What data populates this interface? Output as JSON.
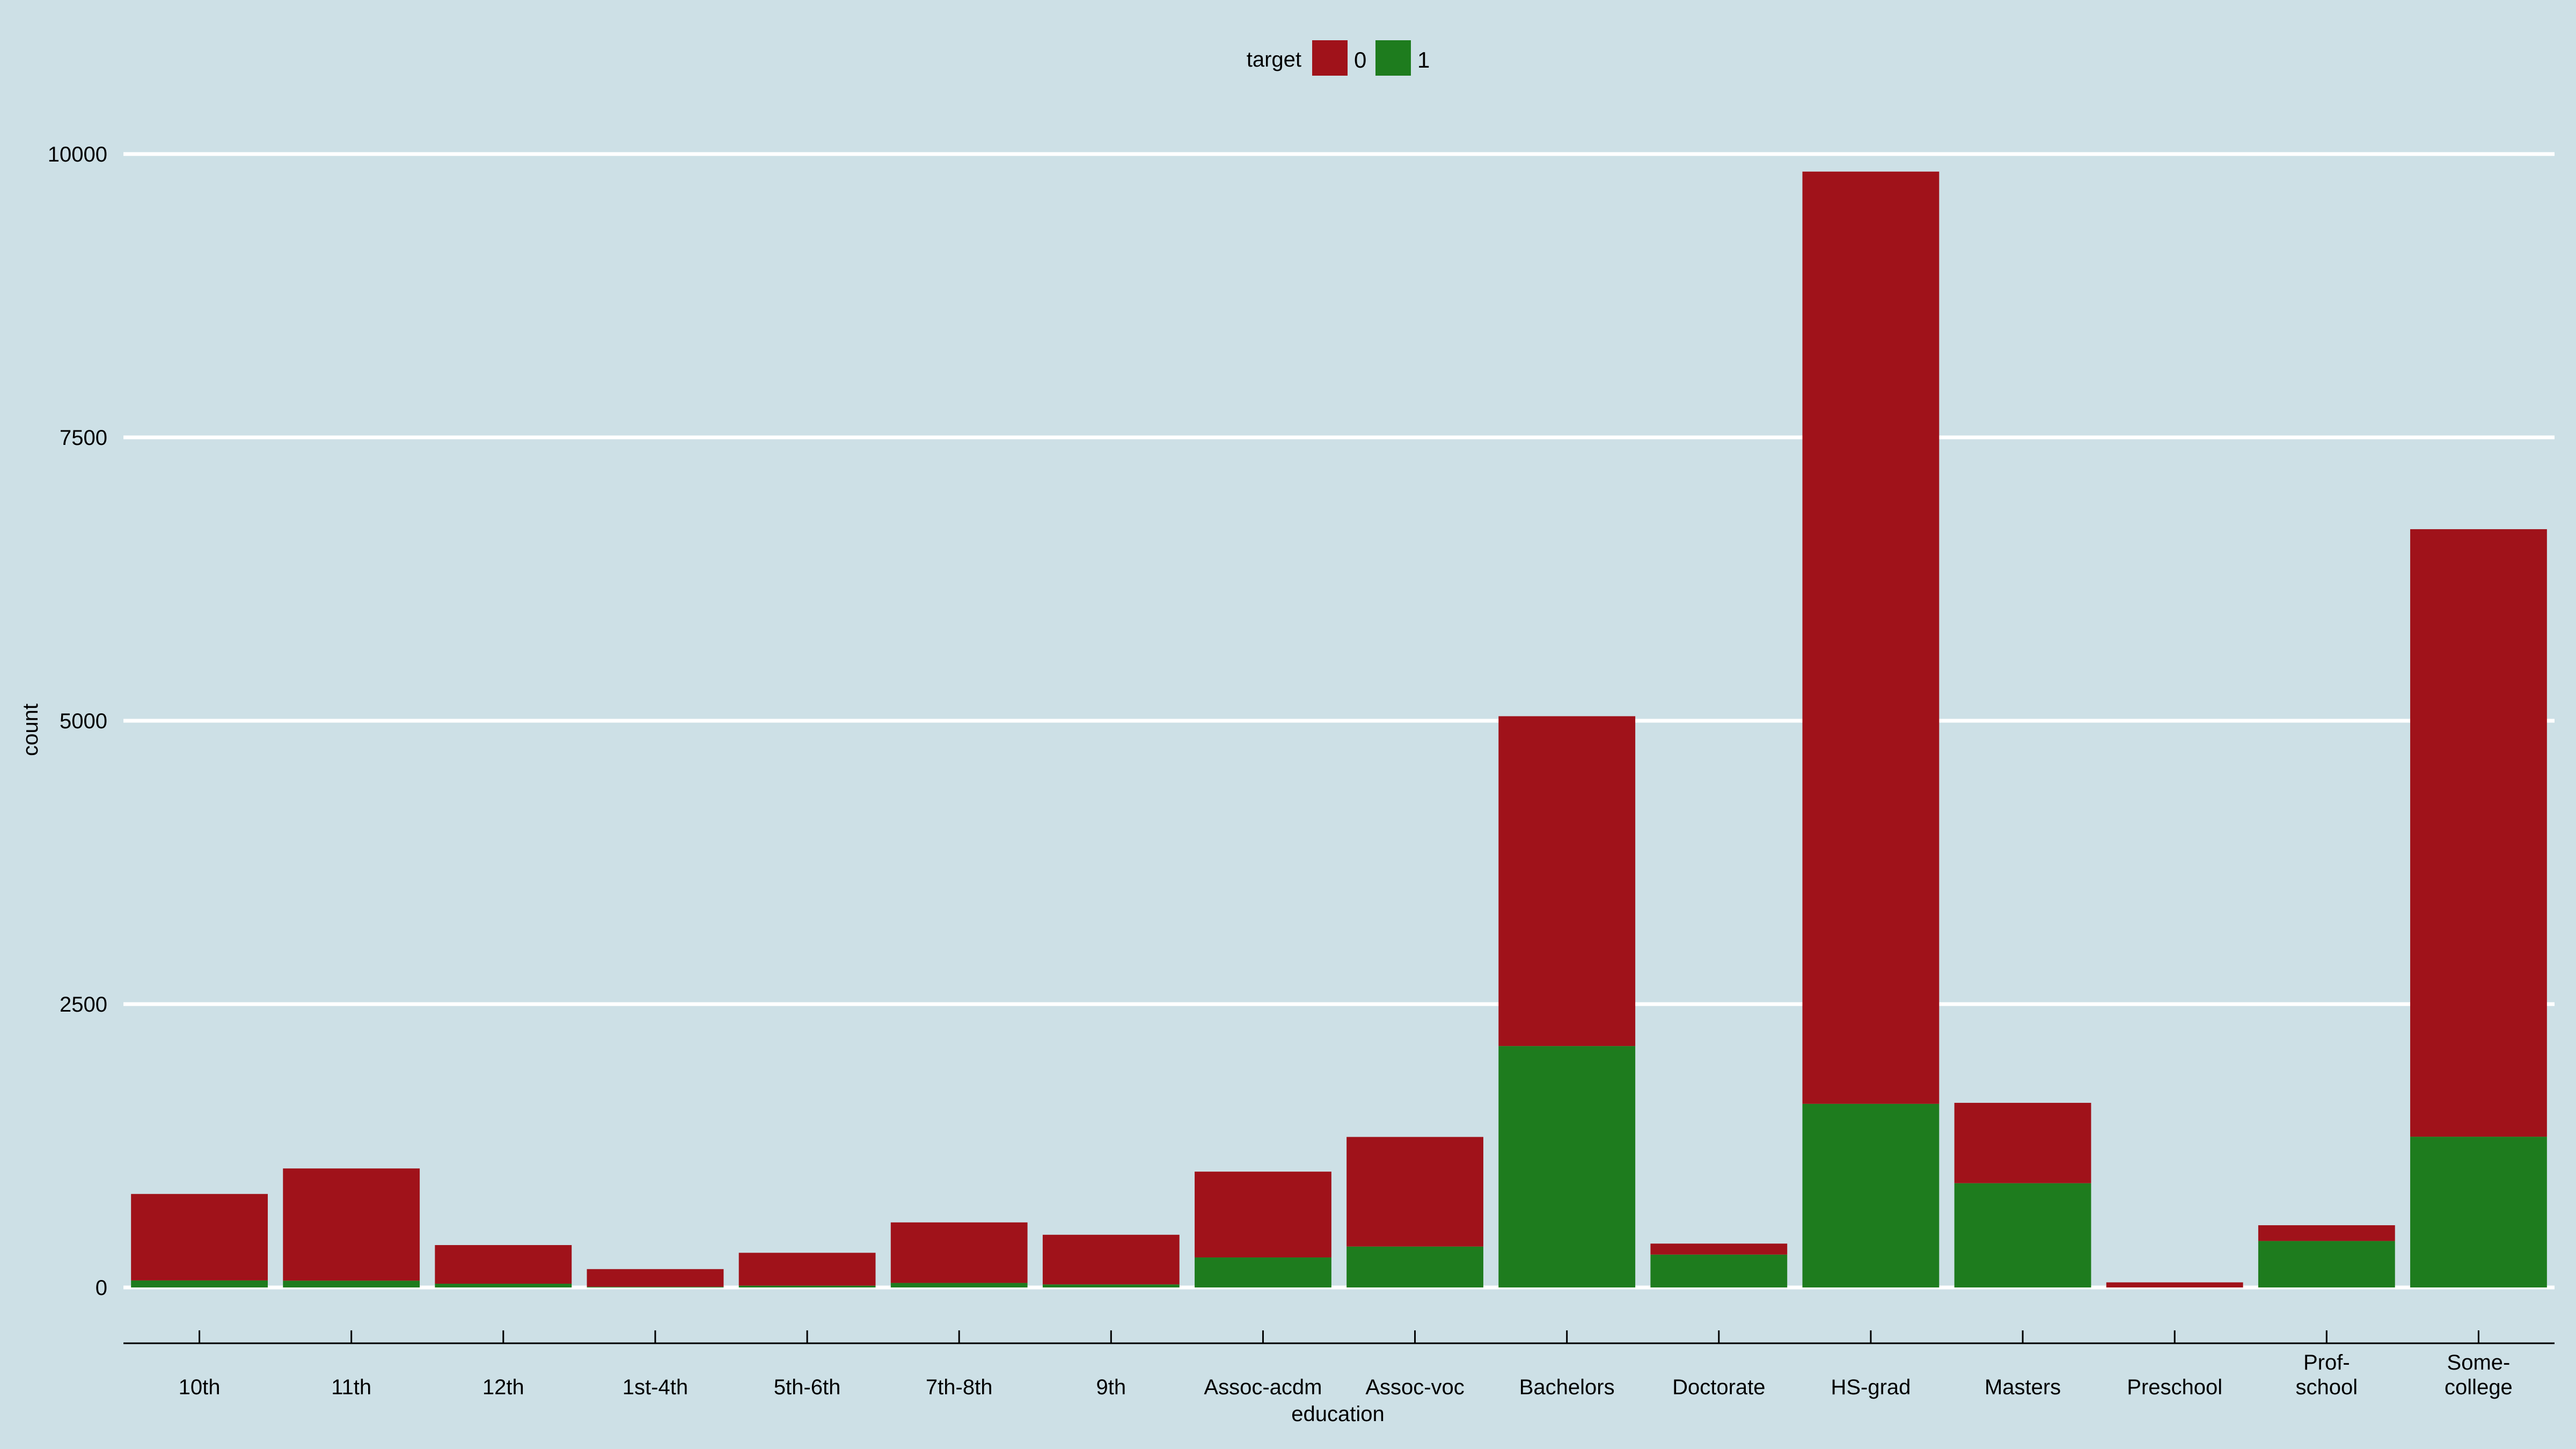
{
  "chart_data": {
    "type": "bar",
    "stacked": true,
    "xlabel": "education",
    "ylabel": "count",
    "ylim": [
      -500,
      10500
    ],
    "yticks": [
      0,
      2500,
      5000,
      7500,
      10000
    ],
    "grid": true,
    "legend": {
      "title": "target",
      "placement": "top-center"
    },
    "categories": [
      "10th",
      "11th",
      "12th",
      "1st-4th",
      "5th-6th",
      "7th-8th",
      "9th",
      "Assoc-acdm",
      "Assoc-voc",
      "Bachelors",
      "Doctorate",
      "HS-grad",
      "Masters",
      "Preschool",
      "Prof-school",
      "Some-college"
    ],
    "category_lines": [
      [
        "10th"
      ],
      [
        "11th"
      ],
      [
        "12th"
      ],
      [
        "1st-4th"
      ],
      [
        "5th-6th"
      ],
      [
        "7th-8th"
      ],
      [
        "9th"
      ],
      [
        "Assoc-acdm"
      ],
      [
        "Assoc-voc"
      ],
      [
        "Bachelors"
      ],
      [
        "Doctorate"
      ],
      [
        "HS-grad"
      ],
      [
        "Masters"
      ],
      [
        "Preschool"
      ],
      [
        "Prof-",
        "school"
      ],
      [
        "Some-",
        "college"
      ]
    ],
    "series": [
      {
        "name": "0",
        "color": "#a0121a",
        "values": [
          763,
          990,
          341,
          156,
          290,
          534,
          438,
          757,
          967,
          2910,
          97,
          8225,
          709,
          45,
          139,
          5360
        ]
      },
      {
        "name": "1",
        "color": "#1e7c1e",
        "values": [
          62,
          60,
          33,
          6,
          16,
          40,
          27,
          265,
          361,
          2130,
          290,
          1620,
          920,
          0,
          410,
          1330
        ]
      }
    ]
  }
}
